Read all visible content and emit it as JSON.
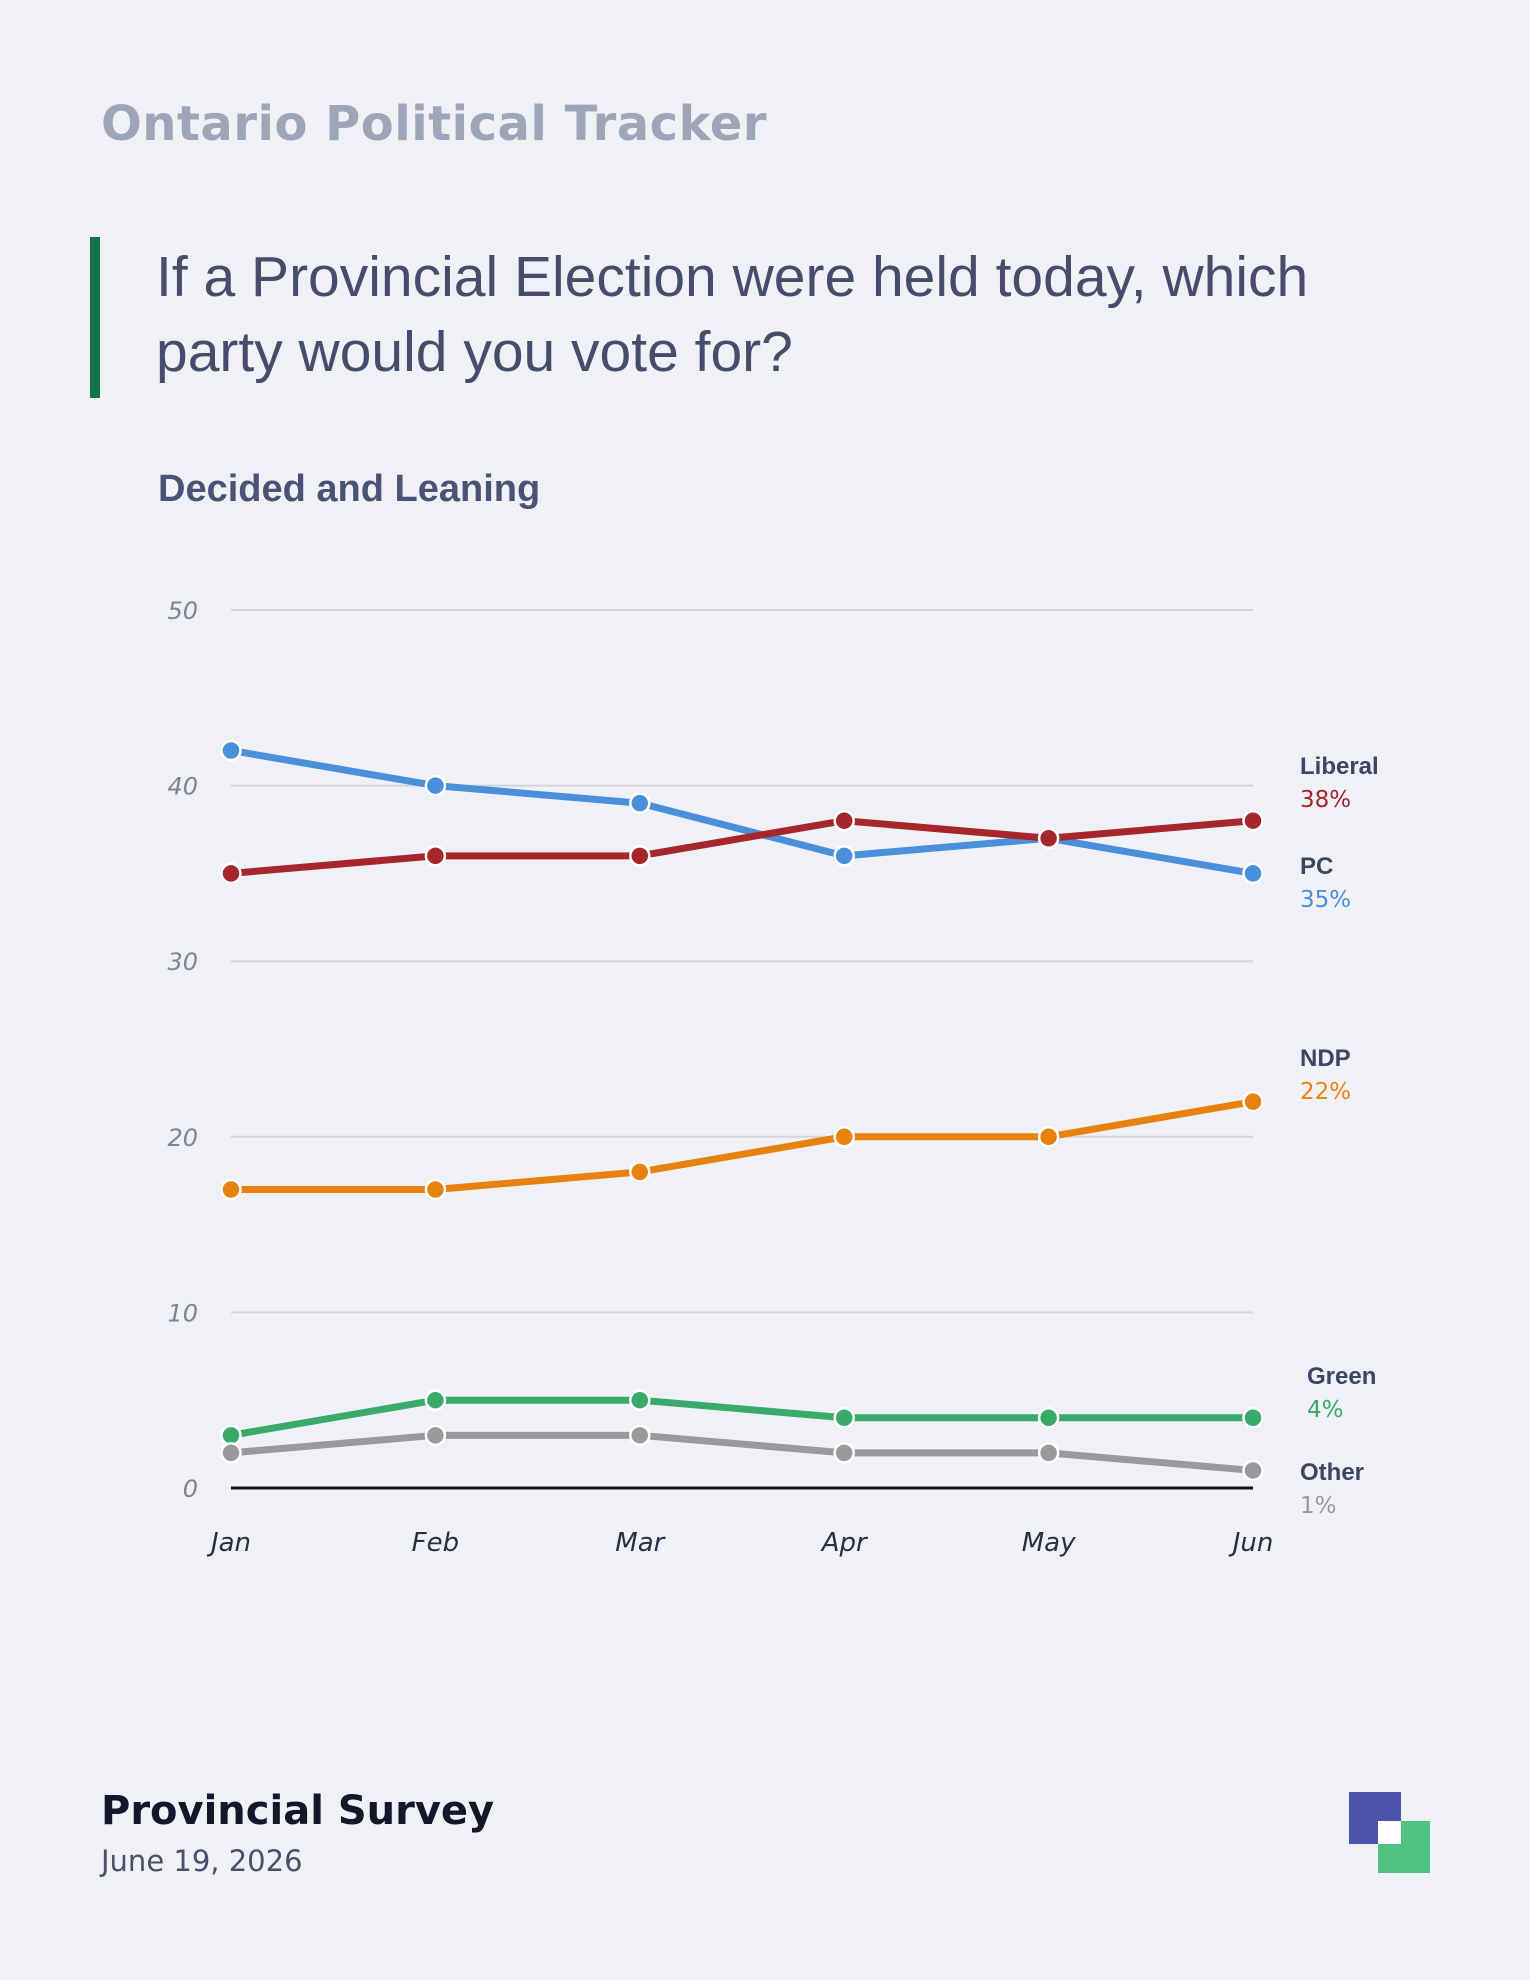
{
  "header": {
    "brand": "Ontario Political Tracker",
    "question": "If a Provincial Election were held today, which party would you vote for?",
    "subtitle": "Decided and Leaning"
  },
  "footer": {
    "title": "Provincial Survey",
    "date": "June 19, 2026"
  },
  "colors": {
    "accent_bar": "#137447",
    "logo_primary": "#4b53ab",
    "logo_secondary": "#4fc281"
  },
  "chart_data": {
    "type": "line",
    "categories": [
      "Jan",
      "Feb",
      "Mar",
      "Apr",
      "May",
      "Jun"
    ],
    "ylim": [
      0,
      50
    ],
    "yticks": [
      0,
      10,
      20,
      30,
      40,
      50
    ],
    "grid": true,
    "legend": "end-of-line labels (right)",
    "series": [
      {
        "name": "PC",
        "color": "#4a8fd9",
        "values": [
          42,
          40,
          39,
          36,
          37,
          35
        ],
        "end_label": "35%"
      },
      {
        "name": "Liberal",
        "color": "#a6262c",
        "values": [
          35,
          36,
          36,
          38,
          37,
          38
        ],
        "end_label": "38%"
      },
      {
        "name": "NDP",
        "color": "#e8820e",
        "values": [
          17,
          17,
          18,
          20,
          20,
          22
        ],
        "end_label": "22%"
      },
      {
        "name": "Green",
        "color": "#3aaa6a",
        "values": [
          3,
          5,
          5,
          4,
          4,
          4
        ],
        "end_label": "4%"
      },
      {
        "name": "Other",
        "color": "#9a9a9a",
        "values": [
          2,
          3,
          3,
          2,
          2,
          1
        ],
        "end_label": "1%"
      }
    ]
  }
}
